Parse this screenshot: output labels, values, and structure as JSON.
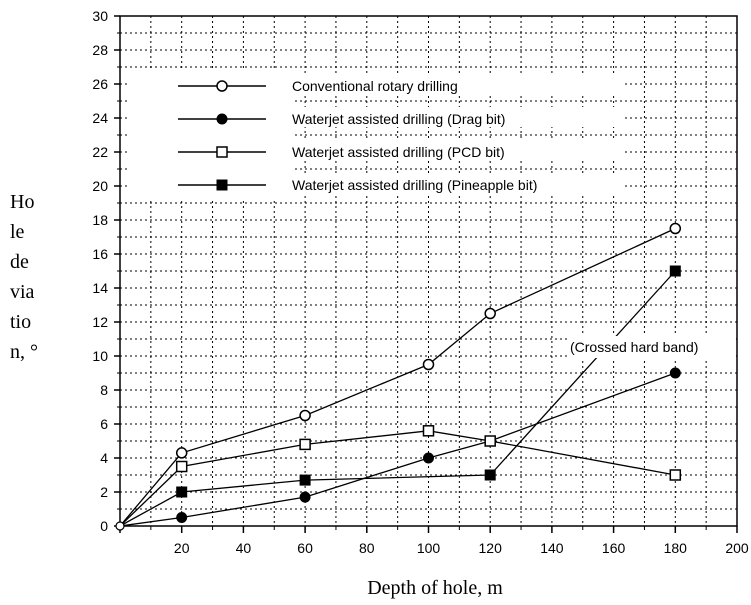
{
  "chart_data": {
    "type": "line",
    "xlabel": "Depth of hole, m",
    "ylabel_lines": [
      "Ho",
      "le",
      "de",
      "via",
      "tio",
      "n, °"
    ],
    "xlim": [
      0,
      200
    ],
    "ylim": [
      0,
      30
    ],
    "x_ticks": [
      0,
      20,
      40,
      60,
      80,
      100,
      120,
      140,
      160,
      180,
      200
    ],
    "y_ticks": [
      0,
      2,
      4,
      6,
      8,
      10,
      12,
      14,
      16,
      18,
      20,
      22,
      24,
      26,
      28,
      30
    ],
    "grid": true,
    "legend_position": "upper-left inside",
    "annotation": "(Crossed hard band)",
    "series": [
      {
        "name": "Conventional rotary drilling",
        "marker": "circle-open",
        "points": [
          [
            0,
            0
          ],
          [
            20,
            4.3
          ],
          [
            60,
            6.5
          ],
          [
            100,
            9.5
          ],
          [
            120,
            12.5
          ],
          [
            180,
            17.5
          ]
        ]
      },
      {
        "name": "Waterjet assisted drilling (Drag bit)",
        "marker": "circle-filled",
        "points": [
          [
            0,
            0
          ],
          [
            20,
            0.5
          ],
          [
            60,
            1.7
          ],
          [
            100,
            4.0
          ],
          [
            120,
            5.0
          ],
          [
            180,
            9.0
          ]
        ]
      },
      {
        "name": "Waterjet assisted drilling (PCD bit)",
        "marker": "square-open",
        "points": [
          [
            0,
            0
          ],
          [
            20,
            3.5
          ],
          [
            60,
            4.8
          ],
          [
            100,
            5.6
          ],
          [
            120,
            5.0
          ],
          [
            180,
            3.0
          ]
        ]
      },
      {
        "name": "Waterjet assisted drilling (Pineapple bit)",
        "marker": "square-filled",
        "points": [
          [
            0,
            0
          ],
          [
            20,
            2.0
          ],
          [
            60,
            2.7
          ],
          [
            120,
            3.0
          ],
          [
            180,
            15.0
          ]
        ]
      }
    ]
  }
}
